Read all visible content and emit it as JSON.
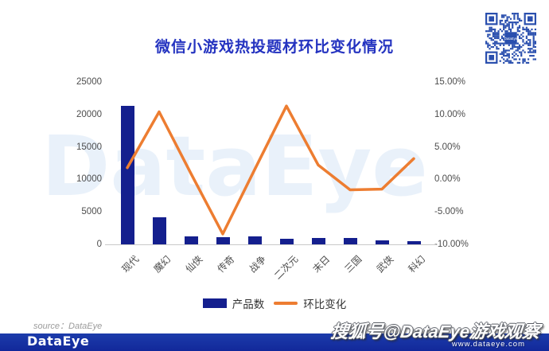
{
  "header": {
    "title": "微信小游戏热投题材环比变化情况"
  },
  "qr": {
    "center_label": "DataEye"
  },
  "plot_watermark": {
    "text": "DataEye"
  },
  "chart_data": {
    "type": "combo",
    "title": "微信小游戏热投题材环比变化情况",
    "categories": [
      "现代",
      "魔幻",
      "仙侠",
      "传奇",
      "战争",
      "二次元",
      "末日",
      "三国",
      "武侠",
      "科幻"
    ],
    "series": [
      {
        "name": "产品数",
        "type": "bar",
        "axis": "left",
        "color": "#141f8e",
        "values": [
          21300,
          4200,
          1250,
          1050,
          1250,
          850,
          950,
          950,
          600,
          450
        ]
      },
      {
        "name": "环比变化",
        "type": "line",
        "axis": "right",
        "color": "#ED7D31",
        "values": [
          1.8,
          10.4,
          0.9,
          -8.4,
          1.5,
          11.3,
          2.2,
          -1.6,
          -1.5,
          3.2
        ],
        "unit": "%"
      }
    ],
    "left_axis": {
      "min": 0,
      "max": 25000,
      "step": 5000,
      "tick_labels": [
        "0",
        "5000",
        "10000",
        "15000",
        "20000",
        "25000"
      ]
    },
    "right_axis": {
      "min": -10,
      "max": 15,
      "step": 5,
      "tick_labels": [
        "-10.00%",
        "-5.00%",
        "0.00%",
        "5.00%",
        "10.00%",
        "15.00%"
      ]
    },
    "legend_position": "bottom",
    "grid": false
  },
  "footer": {
    "source": "source：DataEye",
    "logo": "DataEye",
    "account_watermark": "搜狐号@DataEye游戏观察",
    "url": "www.dataeye.com"
  },
  "colors": {
    "title": "#2433c0",
    "bar": "#141f8e",
    "line": "#ED7D31",
    "footer_bar": "#16309f",
    "qr": "#2a4fae"
  }
}
